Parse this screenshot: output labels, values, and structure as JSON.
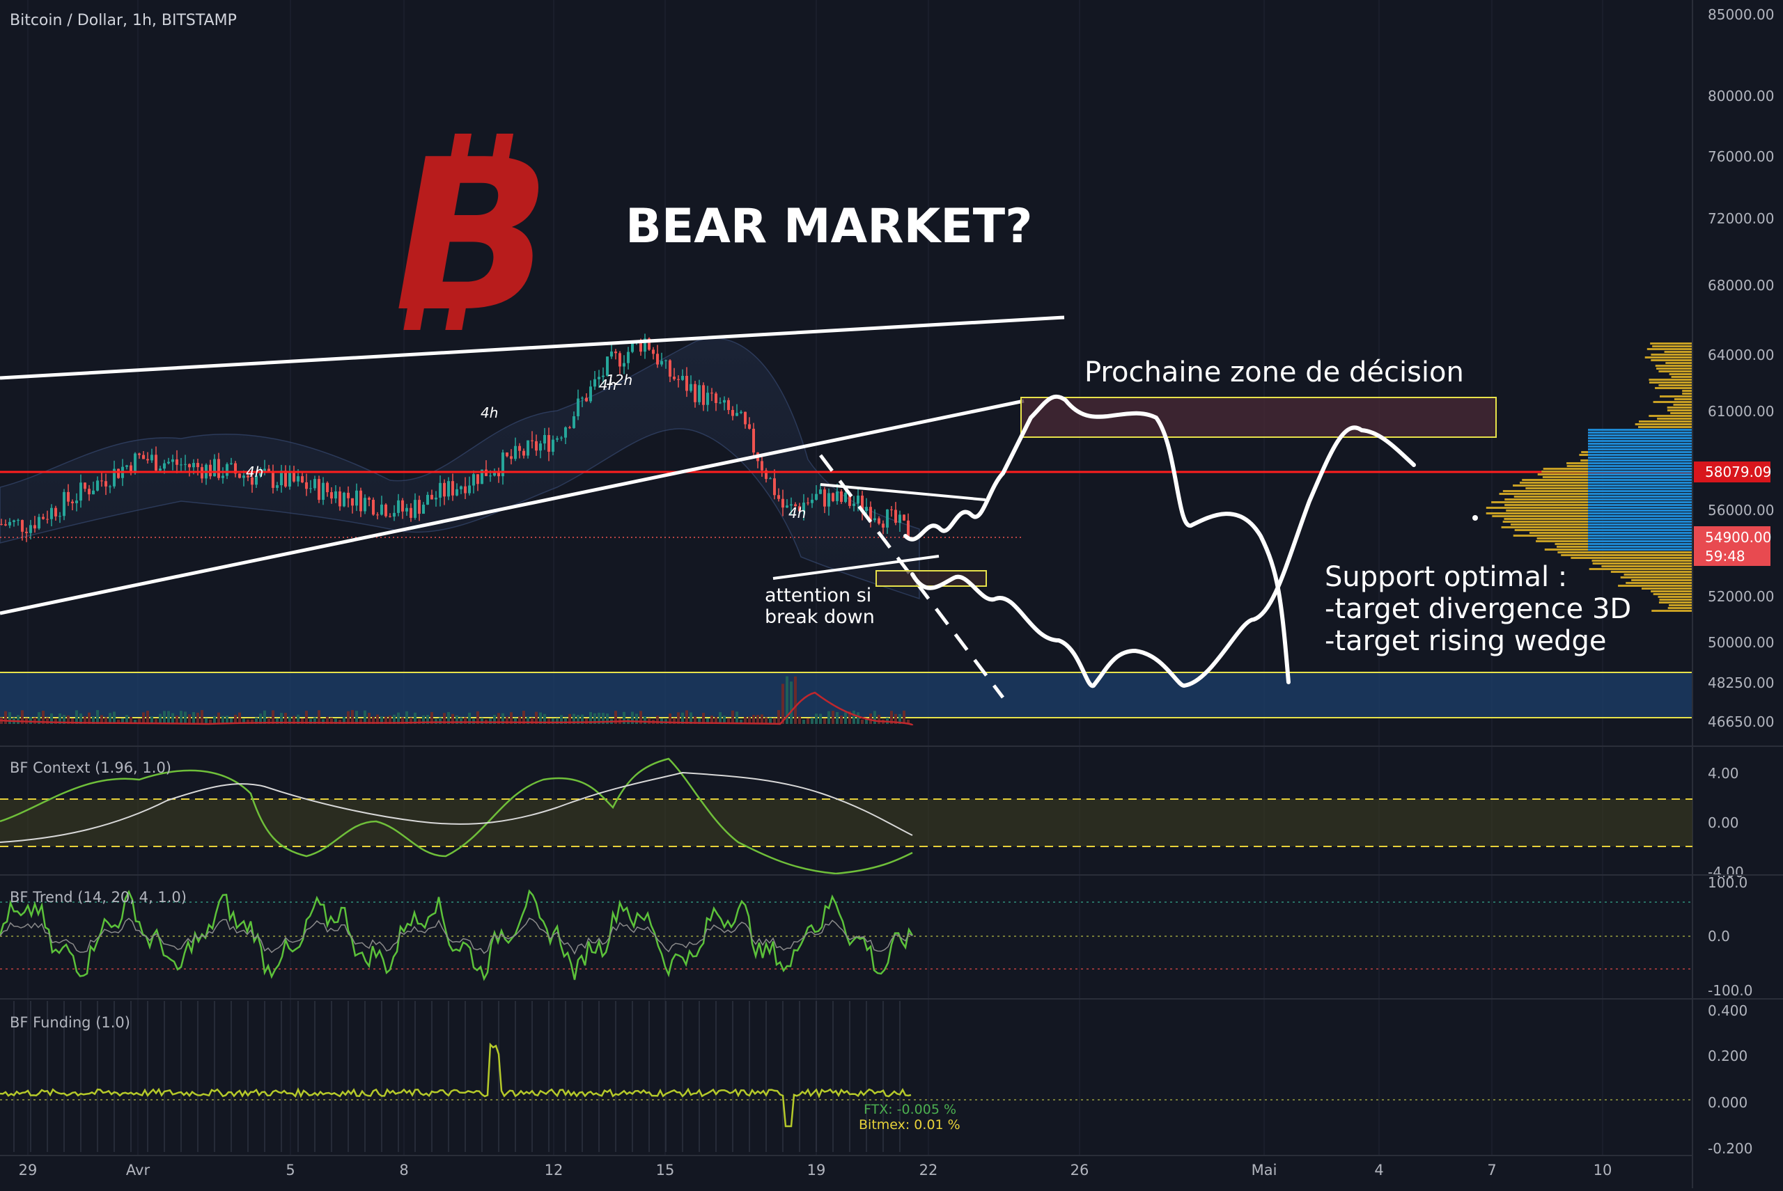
{
  "header": {
    "symbol_title": "Bitcoin / Dollar, 1h, BITSTAMP"
  },
  "colors": {
    "background": "#131722",
    "grid": "#1e2230",
    "candle_up": "#26a69a",
    "candle_down": "#ef5350",
    "bitcoin_logo": "#b81c1c",
    "resistance": "#ff1e1e",
    "zone": "#e8e24a",
    "support_zone": "#1b3c66",
    "volume_profile_gold": "#c8a024",
    "volume_profile_blue": "#1e88d2",
    "context_line": "#6fbf3a",
    "funding_line": "#b5c92a"
  },
  "annotations": {
    "bear_market": "BEAR MARKET?",
    "decision_zone": "Prochaine zone de décision",
    "attention_line1": "attention si",
    "attention_line2": "break down",
    "support_line1": "Support optimal :",
    "support_line2": "-target divergence 3D",
    "support_line3": "-target rising wedge",
    "markers": [
      "4h",
      "4h",
      "4h",
      "12h",
      "4h",
      "4h"
    ]
  },
  "price_axis": {
    "labels": [
      "85000.00",
      "80000.00",
      "76000.00",
      "72000.00",
      "68000.00",
      "64000.00",
      "61000.00",
      "56000.00",
      "52000.00",
      "50000.00",
      "48250.00",
      "46650.00"
    ],
    "resistance_tag": "58079.09",
    "current_price_tag": "54900.00",
    "countdown_tag": "59:48"
  },
  "time_axis": {
    "labels": [
      "29",
      "Avr",
      "5",
      "8",
      "12",
      "15",
      "19",
      "22",
      "26",
      "Mai",
      "4",
      "7",
      "10"
    ]
  },
  "indicators": {
    "context": {
      "label": "BF Context (1.96, 1.0)",
      "axis": [
        "4.00",
        "0.00",
        "-4.00"
      ]
    },
    "trend": {
      "label": "BF Trend (14, 20, 4, 1.0)",
      "axis": [
        "100.0",
        "0.0",
        "-100.0"
      ]
    },
    "funding": {
      "label": "BF Funding (1.0)",
      "axis": [
        "0.400",
        "0.200",
        "0.000",
        "-0.200"
      ],
      "ftx": "FTX: -0.005 %",
      "bitmex": "Bitmex: 0.01 %"
    }
  },
  "chart_data": {
    "type": "candlestick",
    "title": "Bitcoin / Dollar, 1h, BITSTAMP",
    "y_scale": "log",
    "y_axis_ticks": [
      85000,
      80000,
      76000,
      72000,
      68000,
      64000,
      61000,
      56000,
      52000,
      50000,
      48250,
      46650
    ],
    "x_axis_ticks": [
      "29",
      "Avr",
      "5",
      "8",
      "12",
      "15",
      "19",
      "22",
      "26",
      "Mai",
      "4",
      "7",
      "10"
    ],
    "close_path": [
      [
        "29",
        55400
      ],
      [
        "Avr",
        58600
      ],
      [
        "5",
        57400
      ],
      [
        "8",
        56000
      ],
      [
        "12",
        59600
      ],
      [
        "13",
        63500
      ],
      [
        "14",
        64800
      ],
      [
        "15",
        63000
      ],
      [
        "17",
        60500
      ],
      [
        "18",
        56000
      ],
      [
        "19",
        56700
      ],
      [
        "20",
        56300
      ],
      [
        "21",
        55000
      ]
    ],
    "levels": {
      "resistance": 58079.09,
      "current": 54900,
      "support_zone": [
        47000,
        49000
      ]
    },
    "decision_zone": [
      60000,
      62500
    ],
    "gap_zone": [
      53300,
      53700
    ]
  }
}
